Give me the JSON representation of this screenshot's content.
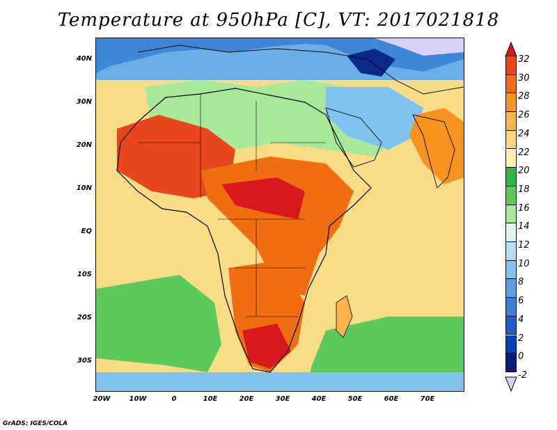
{
  "title": "Temperature at 950hPa [C], VT: 2017021818",
  "footer": "GrADS: IGES/COLA",
  "lat_labels": [
    "40N",
    "30N",
    "20N",
    "10N",
    "EQ",
    "10S",
    "20S",
    "30S"
  ],
  "lon_labels": [
    "20W",
    "10W",
    "0",
    "10E",
    "20E",
    "30E",
    "40E",
    "50E",
    "60E",
    "70E"
  ],
  "colorbar": {
    "labels": [
      "32",
      "30",
      "28",
      "26",
      "24",
      "22",
      "20",
      "18",
      "16",
      "14",
      "12",
      "10",
      "8",
      "6",
      "4",
      "2",
      "0",
      "-2"
    ],
    "colors": [
      "#d7191c",
      "#e8461c",
      "#f06d12",
      "#f7941f",
      "#fbb54a",
      "#fcd67a",
      "#fdefb0",
      "#31b44a",
      "#5cca5a",
      "#a7e89b",
      "#dff7f0",
      "#b6dcf7",
      "#82c2f0",
      "#5aa0e4",
      "#3c7fd8",
      "#215fc8",
      "#0a3fb0",
      "#0a1e78",
      "#d8d2f7"
    ]
  }
}
